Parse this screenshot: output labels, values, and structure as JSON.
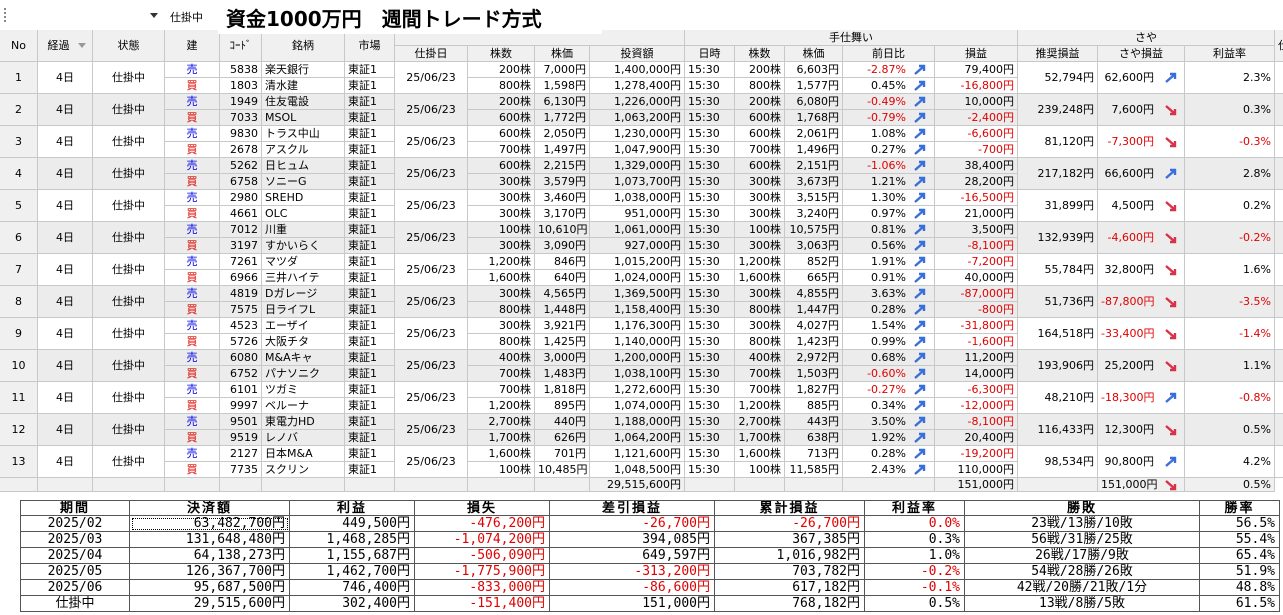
{
  "toolbar": {
    "filter": "仕掛中"
  },
  "title": "資金1000万円　週間トレード方式",
  "main_table": {
    "group_headers": {
      "exit": "手仕舞い",
      "spread": "さや"
    },
    "cut_column": "仕",
    "columns": [
      "No",
      "経過",
      "状態",
      "建",
      "ｺｰﾄﾞ",
      "銘柄",
      "市場",
      "仕掛日",
      "株数",
      "株価",
      "投資額",
      "日時",
      "株数",
      "株価",
      "前日比",
      "損益",
      "推奨損益",
      "さや損益",
      "利益率"
    ],
    "rows": [
      {
        "cells": [
          "1",
          "4日",
          "仕掛中",
          "25/06/23",
          "52,794円",
          "62,600円",
          "2.3%"
        ],
        "trend": "up",
        "legs": [
          [
            "売",
            "5838",
            "楽天銀行",
            "東証1",
            "200株",
            "7,000円",
            "1,400,000円",
            "15:30",
            "200株",
            "6,603円",
            "-2.87%",
            "79,400円"
          ],
          [
            "買",
            "1803",
            "清水建",
            "東証1",
            "800株",
            "1,598円",
            "1,278,400円",
            "15:30",
            "800株",
            "1,577円",
            "0.45%",
            "-16,800円"
          ]
        ]
      },
      {
        "cells": [
          "2",
          "4日",
          "仕掛中",
          "25/06/23",
          "239,248円",
          "7,600円",
          "0.3%"
        ],
        "trend": "down",
        "legs": [
          [
            "売",
            "1949",
            "住友電設",
            "東証1",
            "200株",
            "6,130円",
            "1,226,000円",
            "15:30",
            "200株",
            "6,080円",
            "-0.49%",
            "10,000円"
          ],
          [
            "買",
            "7033",
            "MSOL",
            "東証1",
            "600株",
            "1,772円",
            "1,063,200円",
            "15:30",
            "600株",
            "1,768円",
            "-0.79%",
            "-2,400円"
          ]
        ]
      },
      {
        "cells": [
          "3",
          "4日",
          "仕掛中",
          "25/06/23",
          "81,120円",
          "-7,300円",
          "-0.3%"
        ],
        "trend": "down",
        "legs": [
          [
            "売",
            "9830",
            "トラス中山",
            "東証1",
            "600株",
            "2,050円",
            "1,230,000円",
            "15:30",
            "600株",
            "2,061円",
            "1.08%",
            "-6,600円"
          ],
          [
            "買",
            "2678",
            "アスクル",
            "東証1",
            "700株",
            "1,497円",
            "1,047,900円",
            "15:30",
            "700株",
            "1,496円",
            "0.27%",
            "-700円"
          ]
        ]
      },
      {
        "cells": [
          "4",
          "4日",
          "仕掛中",
          "25/06/23",
          "217,182円",
          "66,600円",
          "2.8%"
        ],
        "trend": "up",
        "legs": [
          [
            "売",
            "5262",
            "日ヒュム",
            "東証1",
            "600株",
            "2,215円",
            "1,329,000円",
            "15:30",
            "600株",
            "2,151円",
            "-1.06%",
            "38,400円"
          ],
          [
            "買",
            "6758",
            "ソニーG",
            "東証1",
            "300株",
            "3,579円",
            "1,073,700円",
            "15:30",
            "300株",
            "3,673円",
            "1.21%",
            "28,200円"
          ]
        ]
      },
      {
        "cells": [
          "5",
          "4日",
          "仕掛中",
          "25/06/23",
          "31,899円",
          "4,500円",
          "0.2%"
        ],
        "trend": "down",
        "legs": [
          [
            "売",
            "2980",
            "SREHD",
            "東証1",
            "300株",
            "3,460円",
            "1,038,000円",
            "15:30",
            "300株",
            "3,515円",
            "1.30%",
            "-16,500円"
          ],
          [
            "買",
            "4661",
            "OLC",
            "東証1",
            "300株",
            "3,170円",
            "951,000円",
            "15:30",
            "300株",
            "3,240円",
            "0.97%",
            "21,000円"
          ]
        ]
      },
      {
        "cells": [
          "6",
          "4日",
          "仕掛中",
          "25/06/23",
          "132,939円",
          "-4,600円",
          "-0.2%"
        ],
        "trend": "down",
        "legs": [
          [
            "売",
            "7012",
            "川重",
            "東証1",
            "100株",
            "10,610円",
            "1,061,000円",
            "15:30",
            "100株",
            "10,575円",
            "0.81%",
            "3,500円"
          ],
          [
            "買",
            "3197",
            "すかいらく",
            "東証1",
            "300株",
            "3,090円",
            "927,000円",
            "15:30",
            "300株",
            "3,063円",
            "0.56%",
            "-8,100円"
          ]
        ]
      },
      {
        "cells": [
          "7",
          "4日",
          "仕掛中",
          "25/06/23",
          "55,784円",
          "32,800円",
          "1.6%"
        ],
        "trend": "down",
        "legs": [
          [
            "売",
            "7261",
            "マツダ",
            "東証1",
            "1,200株",
            "846円",
            "1,015,200円",
            "15:30",
            "1,200株",
            "852円",
            "1.91%",
            "-7,200円"
          ],
          [
            "買",
            "6966",
            "三井ハイテ",
            "東証1",
            "1,600株",
            "640円",
            "1,024,000円",
            "15:30",
            "1,600株",
            "665円",
            "0.91%",
            "40,000円"
          ]
        ]
      },
      {
        "cells": [
          "8",
          "4日",
          "仕掛中",
          "25/06/23",
          "51,736円",
          "-87,800円",
          "-3.5%"
        ],
        "trend": "down",
        "legs": [
          [
            "売",
            "4819",
            "Dガレージ",
            "東証1",
            "300株",
            "4,565円",
            "1,369,500円",
            "15:30",
            "300株",
            "4,855円",
            "3.63%",
            "-87,000円"
          ],
          [
            "買",
            "7575",
            "日ライフL",
            "東証1",
            "800株",
            "1,448円",
            "1,158,400円",
            "15:30",
            "800株",
            "1,447円",
            "0.28%",
            "-800円"
          ]
        ]
      },
      {
        "cells": [
          "9",
          "4日",
          "仕掛中",
          "25/06/23",
          "164,518円",
          "-33,400円",
          "-1.4%"
        ],
        "trend": "down",
        "legs": [
          [
            "売",
            "4523",
            "エーザイ",
            "東証1",
            "300株",
            "3,921円",
            "1,176,300円",
            "15:30",
            "300株",
            "4,027円",
            "1.54%",
            "-31,800円"
          ],
          [
            "買",
            "5726",
            "大阪チタ",
            "東証1",
            "800株",
            "1,425円",
            "1,140,000円",
            "15:30",
            "800株",
            "1,423円",
            "0.99%",
            "-1,600円"
          ]
        ]
      },
      {
        "cells": [
          "10",
          "4日",
          "仕掛中",
          "25/06/23",
          "193,906円",
          "25,200円",
          "1.1%"
        ],
        "trend": "down",
        "legs": [
          [
            "売",
            "6080",
            "M&Aキャ",
            "東証1",
            "400株",
            "3,000円",
            "1,200,000円",
            "15:30",
            "400株",
            "2,972円",
            "0.68%",
            "11,200円"
          ],
          [
            "買",
            "6752",
            "パナソニク",
            "東証1",
            "700株",
            "1,483円",
            "1,038,100円",
            "15:30",
            "700株",
            "1,503円",
            "-0.60%",
            "14,000円"
          ]
        ]
      },
      {
        "cells": [
          "11",
          "4日",
          "仕掛中",
          "25/06/23",
          "48,210円",
          "-18,300円",
          "-0.8%"
        ],
        "trend": "up",
        "legs": [
          [
            "売",
            "6101",
            "ツガミ",
            "東証1",
            "700株",
            "1,818円",
            "1,272,600円",
            "15:30",
            "700株",
            "1,827円",
            "-0.27%",
            "-6,300円"
          ],
          [
            "買",
            "9997",
            "ベルーナ",
            "東証1",
            "1,200株",
            "895円",
            "1,074,000円",
            "15:30",
            "1,200株",
            "885円",
            "0.34%",
            "-12,000円"
          ]
        ]
      },
      {
        "cells": [
          "12",
          "4日",
          "仕掛中",
          "25/06/23",
          "116,433円",
          "12,300円",
          "0.5%"
        ],
        "trend": "down",
        "legs": [
          [
            "売",
            "9501",
            "東電力HD",
            "東証1",
            "2,700株",
            "440円",
            "1,188,000円",
            "15:30",
            "2,700株",
            "443円",
            "3.50%",
            "-8,100円"
          ],
          [
            "買",
            "9519",
            "レノバ",
            "東証1",
            "1,700株",
            "626円",
            "1,064,200円",
            "15:30",
            "1,700株",
            "638円",
            "1.92%",
            "20,400円"
          ]
        ]
      },
      {
        "cells": [
          "13",
          "4日",
          "仕掛中",
          "25/06/23",
          "98,534円",
          "90,800円",
          "4.2%"
        ],
        "trend": "up",
        "legs": [
          [
            "売",
            "2127",
            "日本M&A",
            "東証1",
            "1,600株",
            "701円",
            "1,121,600円",
            "15:30",
            "1,600株",
            "713円",
            "0.28%",
            "-19,200円"
          ],
          [
            "買",
            "7735",
            "スクリン",
            "東証1",
            "100株",
            "10,485円",
            "1,048,500円",
            "15:30",
            "100株",
            "11,585円",
            "2.43%",
            "110,000円"
          ]
        ]
      }
    ],
    "total": {
      "amount": "29,515,600円",
      "pl": "151,000円",
      "spread_pl": "151,000円",
      "trend": "down",
      "rate": "0.5%"
    }
  },
  "summary": {
    "columns": [
      "期間",
      "決済額",
      "利益",
      "損失",
      "差引損益",
      "累計損益",
      "利益率",
      "勝敗",
      "勝率"
    ],
    "rows": [
      [
        "2025/02",
        "63,482,700円",
        "449,500円",
        "-476,200円",
        "-26,700円",
        "-26,700円",
        "0.0%",
        "23戦/13勝/10敗",
        "56.5%"
      ],
      [
        "2025/03",
        "131,648,480円",
        "1,468,285円",
        "-1,074,200円",
        "394,085円",
        "367,385円",
        "0.3%",
        "56戦/31勝/25敗",
        "55.4%"
      ],
      [
        "2025/04",
        "64,138,273円",
        "1,155,687円",
        "-506,090円",
        "649,597円",
        "1,016,982円",
        "1.0%",
        "26戦/17勝/9敗",
        "65.4%"
      ],
      [
        "2025/05",
        "126,367,700円",
        "1,462,700円",
        "-1,775,900円",
        "-313,200円",
        "703,782円",
        "-0.2%",
        "54戦/28勝/26敗",
        "51.9%"
      ],
      [
        "2025/06",
        "95,687,500円",
        "746,400円",
        "-833,000円",
        "-86,600円",
        "617,182円",
        "-0.1%",
        "42戦/20勝/21敗/1分",
        "48.8%"
      ],
      [
        "仕掛中",
        "29,515,600円",
        "302,400円",
        "-151,400円",
        "151,000円",
        "768,182円",
        "0.5%",
        "13戦/8勝/5敗",
        "61.5%"
      ]
    ]
  }
}
